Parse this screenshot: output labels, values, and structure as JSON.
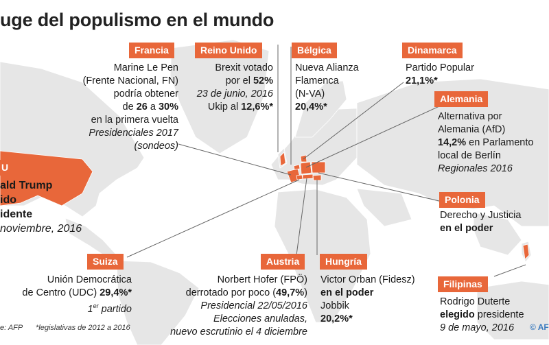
{
  "title": "uge del populismo en el mundo",
  "footer": {
    "source": "e: AFP",
    "note": "*legislativas de 2012 a 2016",
    "credit_symbol": "©",
    "logo": "AFP"
  },
  "colors": {
    "label_bg": "#e8673a",
    "continent": "#e6e6e6",
    "highlight_country": "#e8673a",
    "leader_line": "#666666"
  },
  "countries": {
    "francia": {
      "label": "Francia",
      "lines": [
        "Marine Le Pen",
        "(Frente Nacional, FN)",
        "podría obtener"
      ],
      "pct_pre": "de ",
      "pct_a": "26",
      "pct_mid": " a ",
      "pct_b": "30%",
      "extra": "en la primera vuelta",
      "italic1": "Presidenciales 2017",
      "italic2": "(sondeos)"
    },
    "reino_unido": {
      "label": "Reino Unido",
      "line1": "Brexit votado",
      "line2_pre": "por el ",
      "line2_bold": "52%",
      "italic": "23 de junio, 2016",
      "line4_pre": "Ukip al ",
      "line4_bold": "12,6%*"
    },
    "belgica": {
      "label": "Bélgica",
      "lines": [
        "Nueva Alianza",
        "Flamenca",
        "(N-VA)"
      ],
      "pct": "20,4%*"
    },
    "dinamarca": {
      "label": "Dinamarca",
      "line1": "Partido Popular",
      "pct": "21,1%*"
    },
    "alemania": {
      "label": "Alemania",
      "lines": [
        "Alternativa por",
        "Alemania (AfD)"
      ],
      "pct": "14,2%",
      "rest": " en Parlamento",
      "line4": "local de Berlín",
      "italic": "Regionales 2016"
    },
    "eeuu": {
      "label": "U",
      "line1": "ald Trump",
      "line2": "ido",
      "line3": "idente",
      "italic": "noviembre, 2016"
    },
    "polonia": {
      "label": "Polonia",
      "line1": "Derecho y Justicia",
      "bold": "en el poder"
    },
    "suiza": {
      "label": "Suiza",
      "line1": "Unión Democrática",
      "line2_pre": "de Centro (UDC) ",
      "line2_bold": "29,4%*",
      "sup": "er",
      "line3_num": "1",
      "line3_rest": " partido"
    },
    "austria": {
      "label": "Austria",
      "line1": "Norbert Hofer (FPÖ)",
      "line2_pre": "derrotado por poco (",
      "line2_bold": "49,7%",
      "line2_post": ")",
      "italic1": "Presidencial 22/05/2016",
      "italic2": "Elecciones anuladas,",
      "italic3": "nuevo escrutinio el 4 diciembre"
    },
    "hungria": {
      "label": "Hungría",
      "line1": "Victor Orban (Fidesz)",
      "bold": "en el poder",
      "line3": "Jobbik",
      "pct": "20,2%*"
    },
    "filipinas": {
      "label": "Filipinas",
      "line1": "Rodrigo Duterte",
      "bold": "elegido",
      "rest": " presidente",
      "italic": "9 de mayo, 2016"
    }
  }
}
